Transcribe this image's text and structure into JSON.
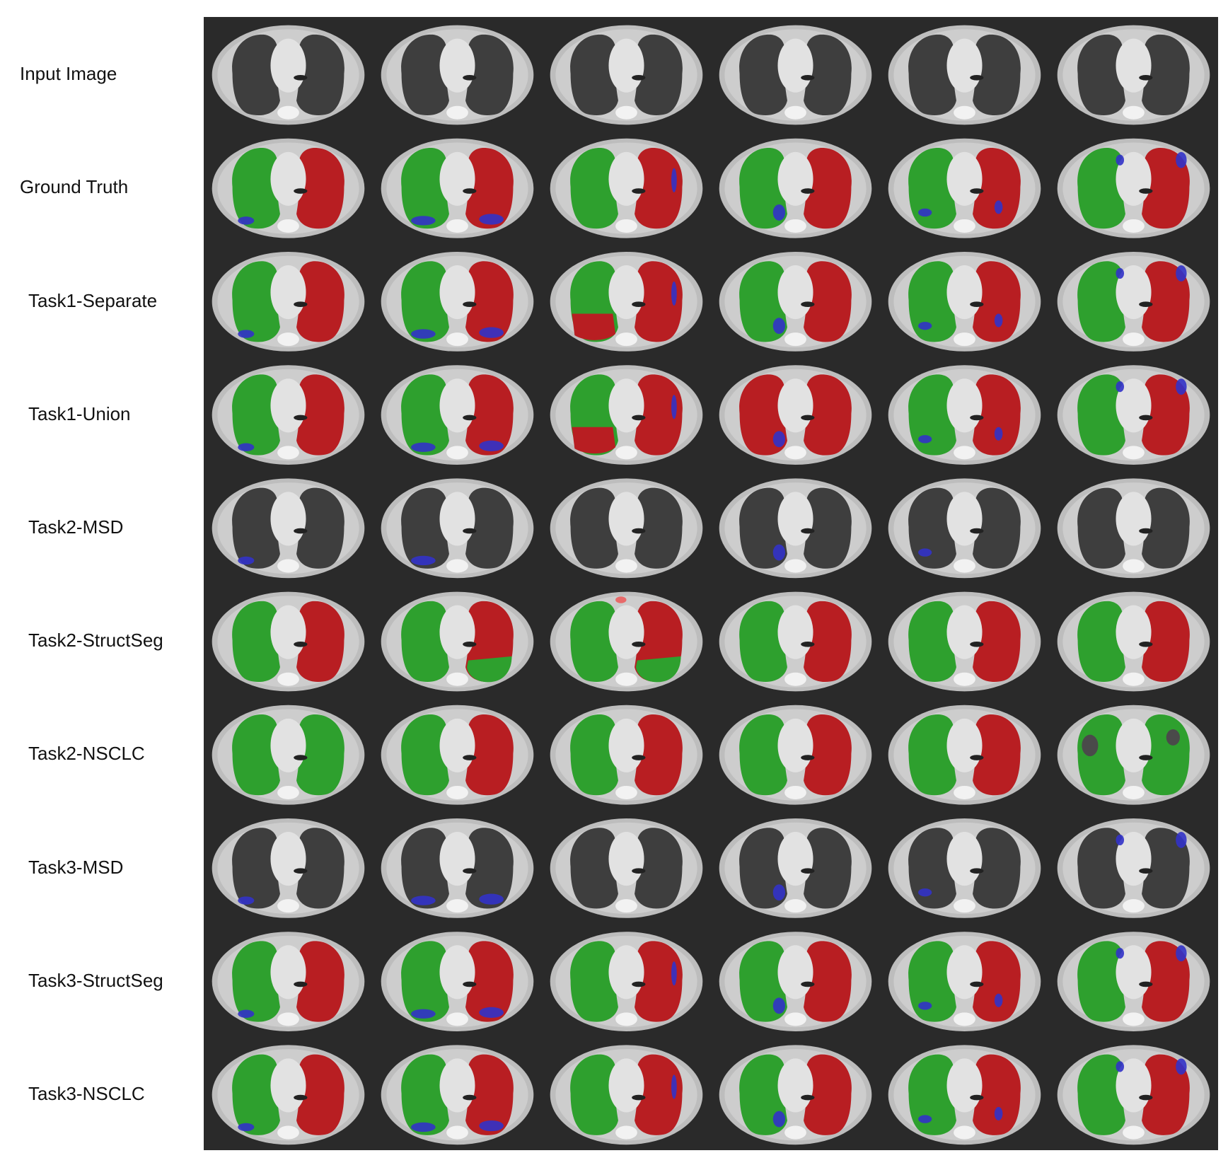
{
  "rows": [
    {
      "label": "Input Image",
      "indent": false,
      "overlay": "none"
    },
    {
      "label": "Ground Truth",
      "indent": false,
      "overlay": "gt"
    },
    {
      "label": "Task1-Separate",
      "indent": true,
      "overlay": "t1sep"
    },
    {
      "label": "Task1-Union",
      "indent": true,
      "overlay": "t1union"
    },
    {
      "label": "Task2-MSD",
      "indent": true,
      "overlay": "blueonly"
    },
    {
      "label": "Task2-StructSeg",
      "indent": true,
      "overlay": "t2struct"
    },
    {
      "label": "Task2-NSCLC",
      "indent": true,
      "overlay": "t2nsclc"
    },
    {
      "label": "Task3-MSD",
      "indent": true,
      "overlay": "blueonly"
    },
    {
      "label": "Task3-StructSeg",
      "indent": true,
      "overlay": "gt"
    },
    {
      "label": "Task3-NSCLC",
      "indent": true,
      "overlay": "gt"
    }
  ],
  "columns": 6,
  "colors": {
    "left_lung": "#2ea02e",
    "right_lung": "#b81e22",
    "lesion": "#3232c8",
    "background": "#2a2a2a",
    "body": "#cdcdcd",
    "lung_air": "#3e3e3e",
    "mediastinum": "#e2e2e2"
  }
}
